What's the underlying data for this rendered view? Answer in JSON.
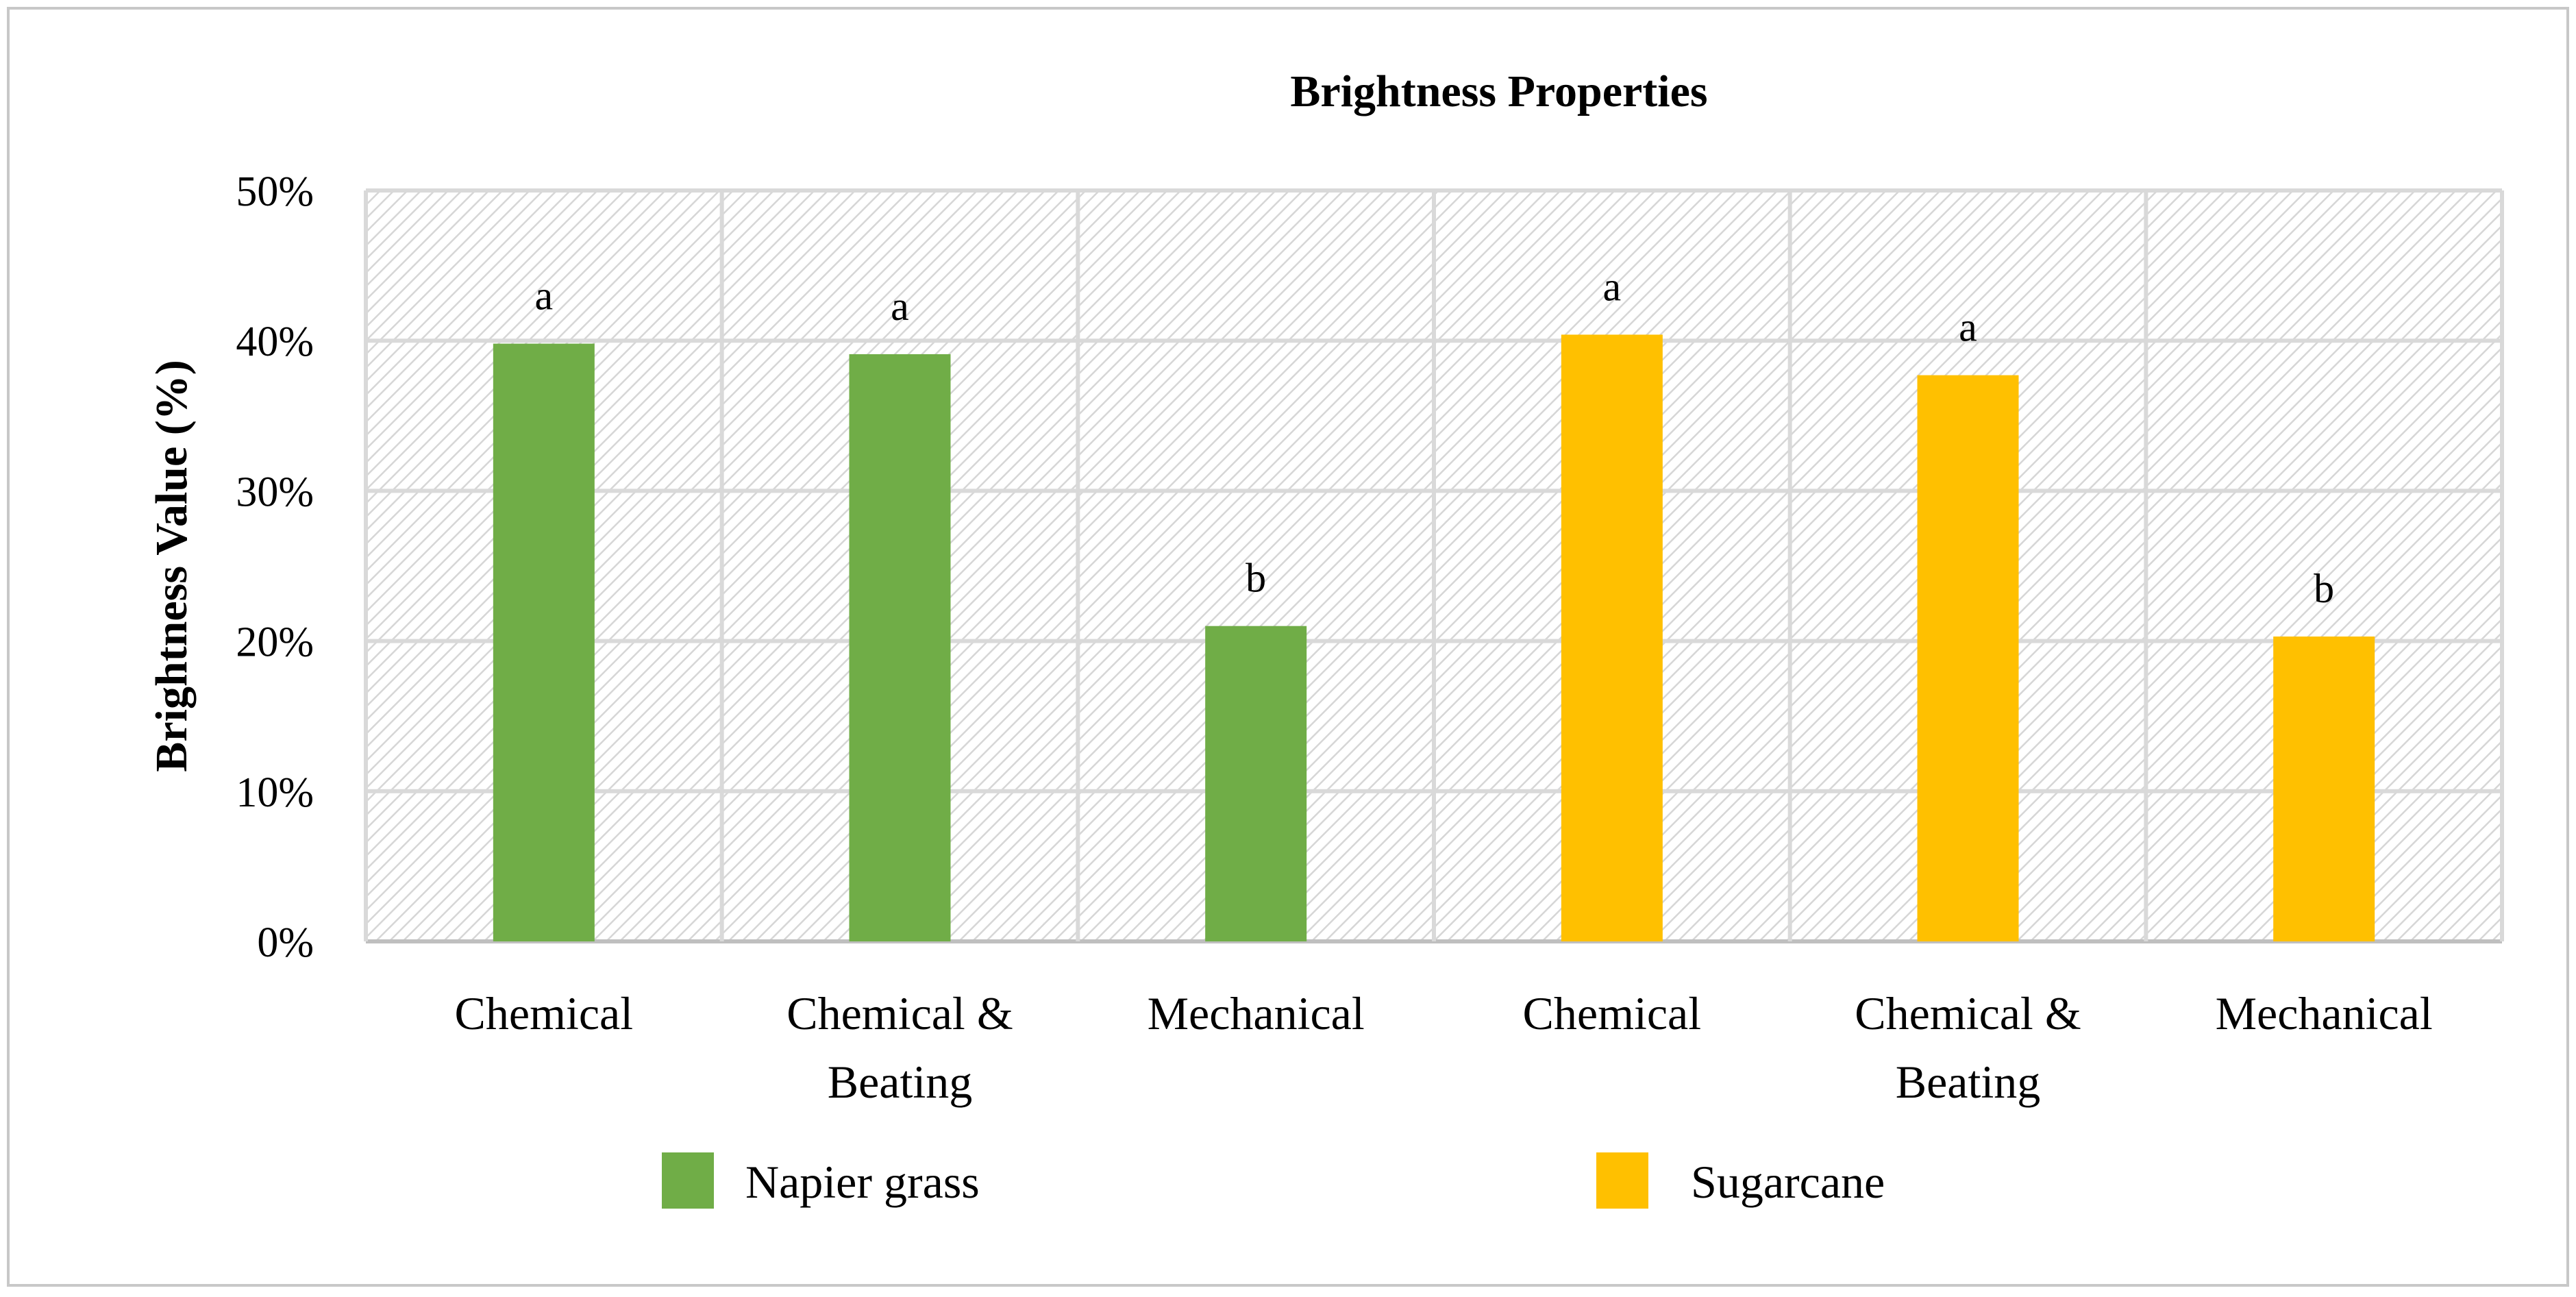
{
  "chart_data": {
    "type": "bar",
    "title": "Brightness Properties",
    "xlabel": "",
    "ylabel": "Brightness Value (%)",
    "ylim": [
      0,
      50
    ],
    "yticks": [
      "0%",
      "10%",
      "20%",
      "30%",
      "40%",
      "50%"
    ],
    "grid": true,
    "legend_position": "bottom",
    "bars": [
      {
        "category": "Chemical",
        "series": "Napier grass",
        "value": 39.8,
        "label": "a"
      },
      {
        "category": "Chemical & Beating",
        "series": "Napier grass",
        "value": 39.1,
        "label": "a"
      },
      {
        "category": "Mechanical",
        "series": "Napier grass",
        "value": 21.0,
        "label": "b"
      },
      {
        "category": "Chemical",
        "series": "Sugarcane",
        "value": 40.4,
        "label": "a"
      },
      {
        "category": "Chemical & Beating",
        "series": "Sugarcane",
        "value": 37.7,
        "label": "a"
      },
      {
        "category": "Mechanical",
        "series": "Sugarcane",
        "value": 20.3,
        "label": "b"
      }
    ],
    "category_lines": [
      [
        "Chemical"
      ],
      [
        "Chemical &",
        "Beating"
      ],
      [
        "Mechanical"
      ],
      [
        "Chemical"
      ],
      [
        "Chemical &",
        "Beating"
      ],
      [
        "Mechanical"
      ]
    ],
    "series": [
      {
        "name": "Napier grass",
        "color": "#70AD47"
      },
      {
        "name": "Sugarcane",
        "color": "#FFC000"
      }
    ]
  }
}
